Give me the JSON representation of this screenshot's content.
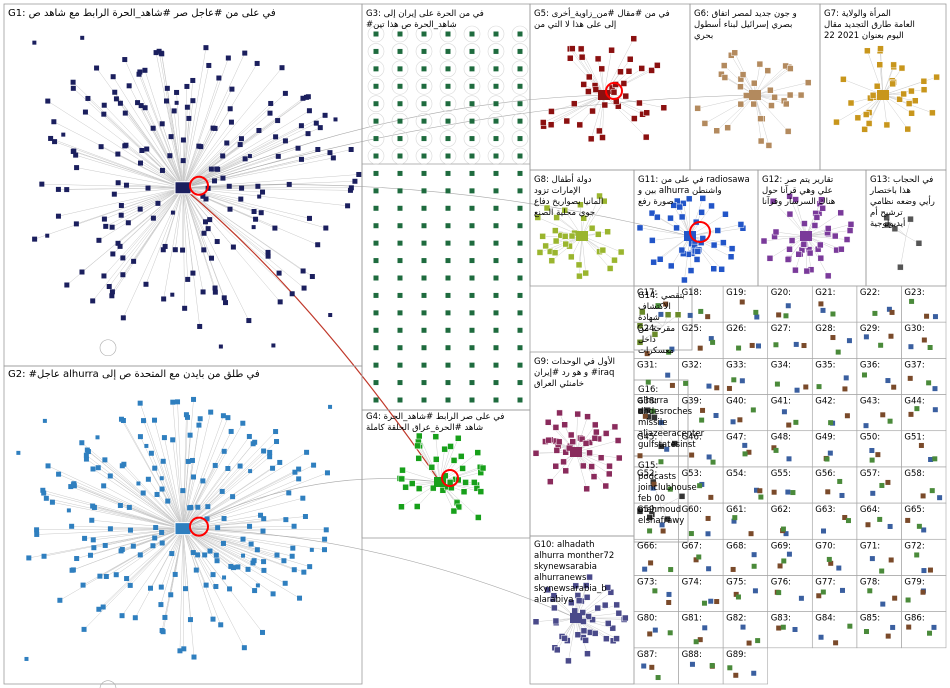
{
  "graph": {
    "background": "#ffffff",
    "edge_color": "#b9b9b9",
    "self_loop_color": "#ff0000",
    "groups": [
      {
        "id": "G1",
        "label": "G1: في على من #عاجل صر #شاهد_الحرة الرابط مع شاهد ص",
        "color": "#1b1f5e",
        "hub": "alhurra"
      },
      {
        "id": "G2",
        "label": "G2: #عاجل alhurra في طلق من بايدن مع المتحدة ص إلى",
        "color": "#2f7fbf",
        "hub": "alhurra"
      },
      {
        "id": "G3",
        "label": "G3: في من الحرة على إيران إلى #شاهد_الحرة ص هذا تين",
        "color": "#1e6b3e"
      },
      {
        "id": "G4",
        "label": "G4: في على صر الرابط #شاهد_الحرة شاهد #الحرة_عراق الحلقة كاملة",
        "color": "#17a01a"
      },
      {
        "id": "G5",
        "label": "G5: في من #مقال #من_زاوية_أخرى إلى على هذا لا التي من",
        "color": "#8b1010"
      },
      {
        "id": "G6",
        "label": "G6: و جون جديد لمصر اتفاق بصري إسرائيل لبناء أسطول بحري",
        "color": "#b38a5e"
      },
      {
        "id": "G7",
        "label": "G7: المرأة والولاية العامة طارق التجديد مقال اليوم بعنوان 2021 22",
        "color": "#c8961c"
      },
      {
        "id": "G8",
        "label": "G8: دولة أطفال الإمارات تزود المانيا بصواريخ دفاع جوي محلية الصنع",
        "color": "#9ab52e"
      },
      {
        "id": "G9",
        "label": "G9: الأول في الوحدات و هو رد #إيران #iraq خامنئي العراق",
        "color": "#8a2b5c"
      },
      {
        "id": "G10",
        "label": "G10: alhadath alhurra monther72 skynewsarabia alhurranews skynewsarabia_b alarabiya alhadath_brk alarabiya alarabiya_brk",
        "color": "#4a4a8a"
      },
      {
        "id": "G11",
        "label": "G11: في على من radiosawa بين و alhurra واشنطن صورة رفع",
        "color": "#2255c8"
      },
      {
        "id": "G12",
        "label": "G12: تقارير يتم صر علي وهي قرآنا حول هناك السرسار وقرآنا",
        "color": "#7a3a9a"
      },
      {
        "id": "G13",
        "label": "G13: في الحجاب هذا باختصار رأيي وضعه نظامي ترشيح أم أيديولوجية",
        "color": "#555555"
      },
      {
        "id": "G14",
        "label": "G14: بتقصي الاكتشاف شهادة مقرحة من داخل معسكرات الأيغور الحرة",
        "color": "#6a8a2a"
      },
      {
        "id": "G15",
        "label": "G15: podcasts joinclubhouse feb 00 mahmoud elshafrawy bentalwadi ahmedkhair",
        "color": "#333333"
      },
      {
        "id": "G16",
        "label": "G16: alhurra dbdesroches missile aljazeeracenter gulfstatesinst gulfintforum centcomarabic ch_menapolicy",
        "color": "#333333"
      }
    ],
    "small_groups": [
      "G17",
      "G18",
      "G19",
      "G20",
      "G21",
      "G22",
      "G23",
      "G24",
      "G25",
      "G26",
      "G27",
      "G28",
      "G29",
      "G30",
      "G31",
      "G32",
      "G33",
      "G34",
      "G35",
      "G36",
      "G37",
      "G38",
      "G39",
      "G40",
      "G41",
      "G42",
      "G43",
      "G44",
      "G45",
      "G46",
      "G47",
      "G48",
      "G49",
      "G50",
      "G51",
      "G52",
      "G53",
      "G54",
      "G55",
      "G56",
      "G57",
      "G58",
      "G59",
      "G60",
      "G61",
      "G62",
      "G63",
      "G64",
      "G65",
      "G66",
      "G67",
      "G68",
      "G69",
      "G70",
      "G71",
      "G72",
      "G73",
      "G74",
      "G75",
      "G76",
      "G77",
      "G78",
      "G79",
      "G80",
      "G81",
      "G82",
      "G83",
      "G84",
      "G85",
      "G86",
      "G87",
      "G88",
      "G89"
    ]
  }
}
